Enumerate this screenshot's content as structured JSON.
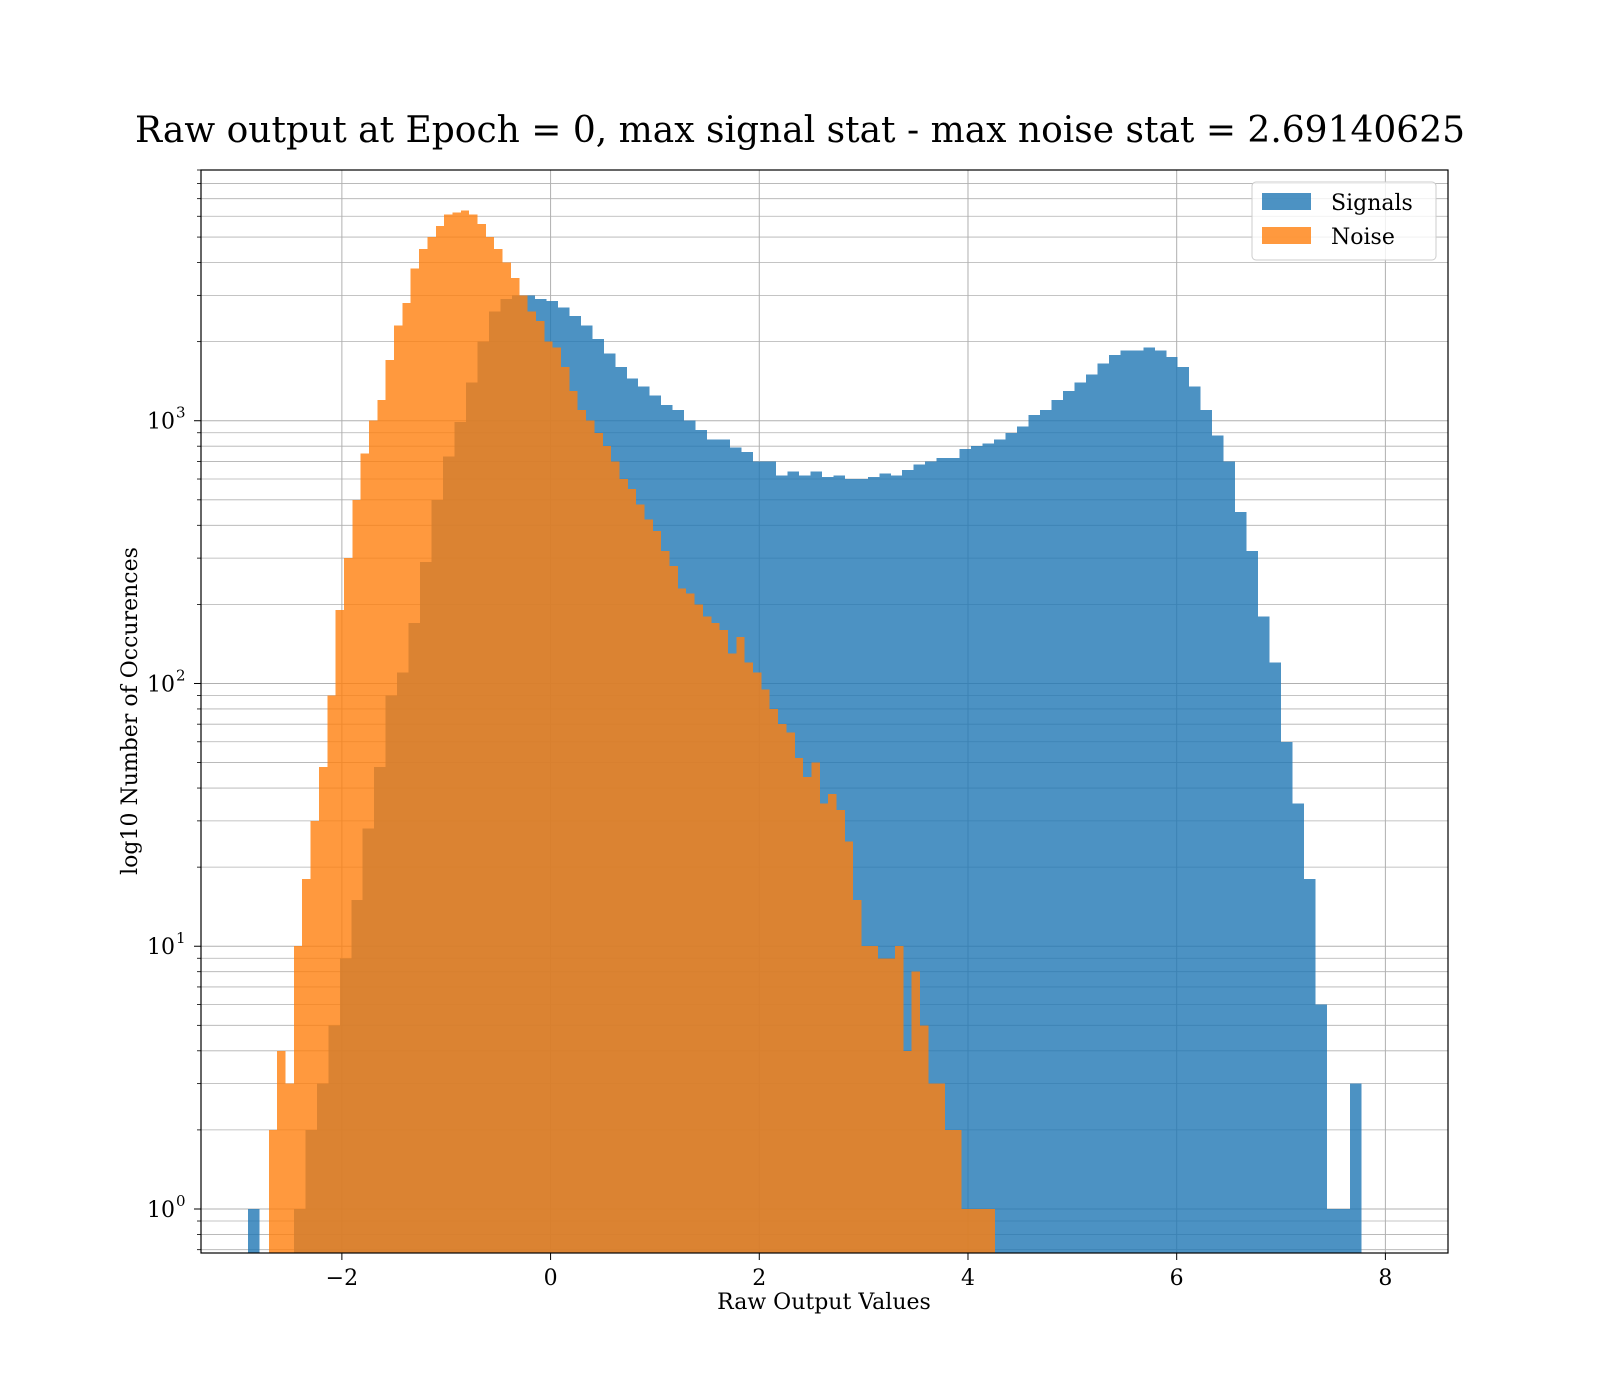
{
  "chart_data": {
    "type": "bar",
    "subtype": "overlapping-histogram",
    "title": "Raw output at Epoch = 0, max signal stat - max noise stat = 2.69140625",
    "xlabel": "Raw Output Values",
    "ylabel": "log10 Number of Occurences",
    "xlim": [
      -3.35,
      8.6
    ],
    "ylim": [
      0.68,
      9000
    ],
    "yscale": "log",
    "grid": true,
    "x_ticks": [
      -2,
      0,
      2,
      4,
      6,
      8
    ],
    "x_tick_labels": [
      "−2",
      "0",
      "2",
      "4",
      "6",
      "8"
    ],
    "y_major_ticks": [
      1,
      10,
      100,
      1000
    ],
    "y_tick_labels": [
      {
        "base": "10",
        "exp": "0"
      },
      {
        "base": "10",
        "exp": "1"
      },
      {
        "base": "10",
        "exp": "2"
      },
      {
        "base": "10",
        "exp": "3"
      }
    ],
    "legend_position": "top-right",
    "series": [
      {
        "name": "Signals",
        "color": "#1f77b4",
        "opacity": 0.8,
        "bin_start": -2.9,
        "bin_width": 0.11,
        "values": [
          1,
          0,
          0,
          0,
          1,
          2,
          3,
          5,
          9,
          15,
          28,
          48,
          90,
          110,
          170,
          290,
          500,
          730,
          990,
          1400,
          2000,
          2600,
          2900,
          3000,
          3000,
          2900,
          2850,
          2700,
          2500,
          2300,
          2050,
          1800,
          1600,
          1450,
          1350,
          1250,
          1150,
          1100,
          1000,
          920,
          850,
          850,
          790,
          760,
          700,
          700,
          620,
          640,
          620,
          640,
          610,
          620,
          600,
          600,
          610,
          630,
          620,
          650,
          680,
          700,
          720,
          720,
          780,
          800,
          820,
          850,
          900,
          950,
          1050,
          1100,
          1200,
          1300,
          1400,
          1500,
          1650,
          1780,
          1850,
          1850,
          1900,
          1850,
          1750,
          1600,
          1350,
          1100,
          880,
          700,
          450,
          320,
          180,
          120,
          60,
          35,
          18,
          6,
          1,
          1,
          3
        ]
      },
      {
        "name": "Noise",
        "color": "#ff7f0e",
        "opacity": 0.8,
        "bin_start": -2.7,
        "bin_width": 0.08,
        "values": [
          2,
          4,
          3,
          10,
          18,
          30,
          48,
          90,
          190,
          300,
          500,
          750,
          1000,
          1200,
          1700,
          2300,
          2800,
          3800,
          4500,
          5000,
          5500,
          6100,
          6200,
          6300,
          6100,
          5600,
          5000,
          4500,
          4000,
          3500,
          3000,
          2600,
          2400,
          2000,
          1900,
          1600,
          1300,
          1100,
          1000,
          900,
          800,
          700,
          600,
          550,
          480,
          420,
          380,
          320,
          280,
          230,
          220,
          200,
          180,
          170,
          160,
          130,
          150,
          120,
          110,
          95,
          80,
          70,
          65,
          52,
          44,
          50,
          35,
          38,
          33,
          25,
          15,
          10,
          10,
          9,
          9,
          10,
          4,
          8,
          5,
          3,
          3,
          2,
          2,
          1,
          1,
          1,
          1
        ]
      }
    ]
  }
}
